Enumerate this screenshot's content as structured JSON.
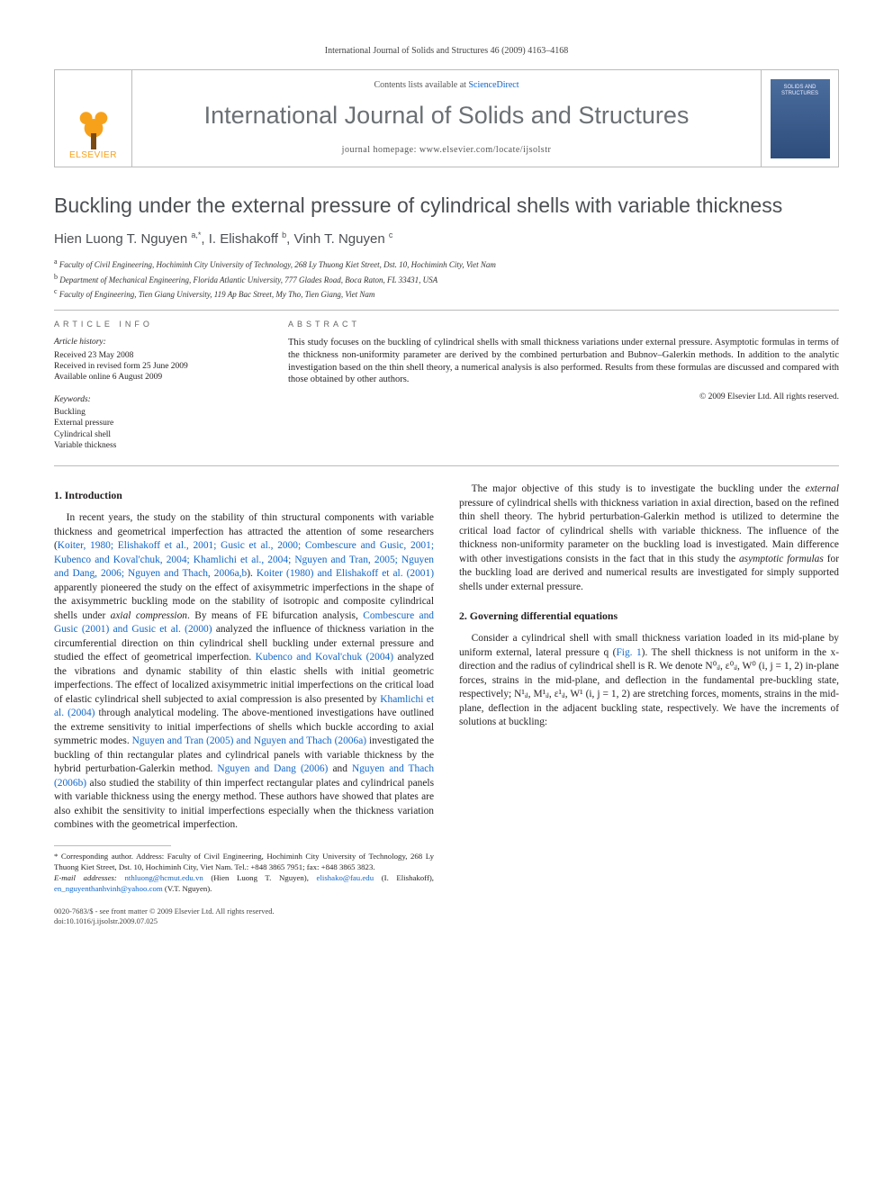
{
  "running_head": "International Journal of Solids and Structures 46 (2009) 4163–4168",
  "masthead": {
    "contents_prefix": "Contents lists available at ",
    "contents_link": "ScienceDirect",
    "journal": "International Journal of Solids and Structures",
    "homepage_label": "journal homepage: ",
    "homepage_url": "www.elsevier.com/locate/ijsolstr",
    "publisher": "ELSEVIER",
    "cover_text": "SOLIDS AND STRUCTURES"
  },
  "title": "Buckling under the external pressure of cylindrical shells with variable thickness",
  "authors_html": "Hien Luong T. Nguyen <sup>a,*</sup>, I. Elishakoff <sup>b</sup>, Vinh T. Nguyen <sup>c</sup>",
  "affiliations": [
    {
      "sup": "a",
      "text": "Faculty of Civil Engineering, Hochiminh City University of Technology, 268 Ly Thuong Kiet Street, Dst. 10, Hochiminh City, Viet Nam"
    },
    {
      "sup": "b",
      "text": "Department of Mechanical Engineering, Florida Atlantic University, 777 Glades Road, Boca Raton, FL 33431, USA"
    },
    {
      "sup": "c",
      "text": "Faculty of Engineering, Tien Giang University, 119 Ap Bac Street, My Tho, Tien Giang, Viet Nam"
    }
  ],
  "article_info": {
    "head": "ARTICLE INFO",
    "history_label": "Article history:",
    "history": [
      "Received 23 May 2008",
      "Received in revised form 25 June 2009",
      "Available online 6 August 2009"
    ],
    "keywords_label": "Keywords:",
    "keywords": [
      "Buckling",
      "External pressure",
      "Cylindrical shell",
      "Variable thickness"
    ]
  },
  "abstract": {
    "head": "ABSTRACT",
    "text": "This study focuses on the buckling of cylindrical shells with small thickness variations under external pressure. Asymptotic formulas in terms of the thickness non-uniformity parameter are derived by the combined perturbation and Bubnov–Galerkin methods. In addition to the analytic investigation based on the thin shell theory, a numerical analysis is also performed. Results from these formulas are discussed and compared with those obtained by other authors.",
    "copyright": "© 2009 Elsevier Ltd. All rights reserved."
  },
  "sections": {
    "s1": {
      "heading": "1. Introduction",
      "p1a": "In recent years, the study on the stability of thin structural components with variable thickness and geometrical imperfection has attracted the attention of some researchers (",
      "ref1": "Koiter, 1980; Elishakoff et al., 2001; Gusic et al., 2000; Combescure and Gusic, 2001; Kubenco and Koval'chuk, 2004; Khamlichi et al., 2004; Nguyen and Tran, 2005; Nguyen and Dang, 2006; Nguyen and Thach, 2006a,b",
      "p1b": "). ",
      "ref2": "Koiter (1980) and Elishakoff et al. (2001)",
      "p1c": " apparently pioneered the study on the effect of axisymmetric imperfections in the shape of the axisymmetric buckling mode on the stability of isotropic and composite cylindrical shells under ",
      "ital1": "axial compression",
      "p1d": ". By means of FE bifurcation analysis, ",
      "ref3": "Combescure and Gusic (2001) and Gusic et al. (2000)",
      "p1e": " analyzed the influence of thickness variation in the circumferential direction on thin cylindrical shell buckling under external pressure and studied the effect of geometrical imperfection. ",
      "ref4": "Kubenco and Koval'chuk (2004)",
      "p1f": " analyzed the vibrations and dynamic stability of thin elastic shells with initial geometric imperfections. The effect of localized axisymmetric initial imperfections on the critical load of elastic cylindrical shell subjected to axial compression is also presented by ",
      "ref5": "Khamlichi et al. (2004)",
      "p1g": " through analytical modeling. The above-mentioned investigations have outlined the extreme sensitivity to initial imperfections of shells which buckle according to axial symmetric modes. ",
      "ref6": "Nguyen and Tran (2005) and Nguyen and Thach (2006a)",
      "p1h": " investigated the buckling of thin rectangular plates and cylindrical panels with variable thickness by the hybrid perturbation-Galerkin method. ",
      "ref7": "Nguyen and Dang (2006)",
      "p1i": " and ",
      "ref8": "Nguyen and Thach (2006b)",
      "p1j": " also studied the stability of thin imperfect rectangular plates and cylindrical panels with variable thickness using the energy method. These authors have showed that plates are also exhibit the sensitivity to initial imperfections especially when the thickness variation combines with the geometrical imperfection.",
      "p2a": "The major objective of this study is to investigate the buckling under the ",
      "ital2": "external",
      "p2b": " pressure of cylindrical shells with thickness variation in axial direction, based on the refined thin shell theory. The hybrid perturbation-Galerkin method is utilized to determine the critical load factor of cylindrical shells with variable thickness. The influence of the thickness non-uniformity parameter on the buckling load is investigated. Main difference with other investigations consists in the fact that in this study the ",
      "ital3": "asymptotic formulas",
      "p2c": " for the buckling load are derived and numerical results are investigated for simply supported shells under external pressure."
    },
    "s2": {
      "heading": "2. Governing differential equations",
      "p1a": "Consider a cylindrical shell with small thickness variation loaded in its mid-plane by uniform external, lateral pressure q (",
      "figref": "Fig. 1",
      "p1b": "). The shell thickness is not uniform in the x-direction and the radius of cylindrical shell is R. We denote N⁰ᵢⱼ, ε⁰ᵢⱼ, W⁰ (i, j = 1, 2) in-plane forces, strains in the mid-plane, and deflection in the fundamental pre-buckling state, respectively; N¹ᵢⱼ, M¹ᵢⱼ, ε¹ᵢⱼ, W¹ (i, j = 1, 2) are stretching forces, moments, strains in the mid-plane, deflection in the adjacent buckling state, respectively. We have the increments of solutions at buckling:"
    }
  },
  "footnote": {
    "corr_label": "* Corresponding author. Address: Faculty of Civil Engineering, Hochiminh City University of Technology, 268 Ly Thuong Kiet Street, Dst. 10, Hochiminh City, Viet Nam. Tel.: +848 3865 7951; fax: +848 3865 3823.",
    "email_label": "E-mail addresses:",
    "emails": [
      {
        "addr": "nthluong@hcmut.edu.vn",
        "who": " (Hien Luong T. Nguyen), "
      },
      {
        "addr": "elishako@fau.edu",
        "who": " (I. Elishakoff), "
      },
      {
        "addr": "en_nguyenthanhvinh@yahoo.com",
        "who": " (V.T. Nguyen)."
      }
    ]
  },
  "bottom": {
    "line1": "0020-7683/$ - see front matter © 2009 Elsevier Ltd. All rights reserved.",
    "line2": "doi:10.1016/j.ijsolstr.2009.07.025"
  }
}
